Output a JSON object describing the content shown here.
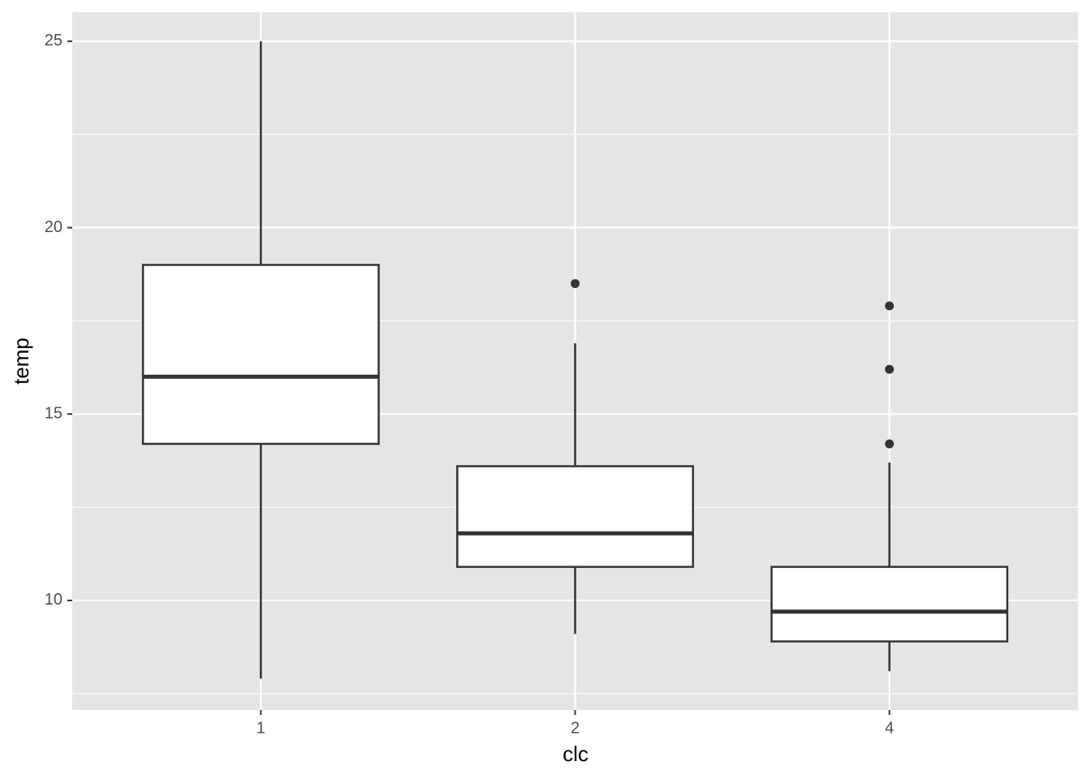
{
  "chart_data": {
    "type": "box",
    "x_label": "clc",
    "y_label": "temp",
    "categories": [
      "1",
      "2",
      "4"
    ],
    "boxes": [
      {
        "whislo": 7.9,
        "q1": 14.2,
        "med": 16.0,
        "q3": 19.0,
        "whishi": 25.0,
        "outliers": []
      },
      {
        "whislo": 9.1,
        "q1": 10.9,
        "med": 11.8,
        "q3": 13.6,
        "whishi": 16.9,
        "outliers": [
          18.5
        ]
      },
      {
        "whislo": 8.1,
        "q1": 8.9,
        "med": 9.7,
        "q3": 10.9,
        "whishi": 13.7,
        "outliers": [
          17.9,
          16.2,
          14.2
        ]
      }
    ],
    "box_fill": "#ffffff",
    "line_color": "#333333",
    "panel_color": "#e5e5e5",
    "ylim": [
      7.06,
      25.78
    ],
    "yticks": [
      10,
      15,
      20,
      25
    ],
    "minor_yticks": [
      7.5,
      12.5,
      17.5,
      22.5
    ],
    "grid": true
  }
}
